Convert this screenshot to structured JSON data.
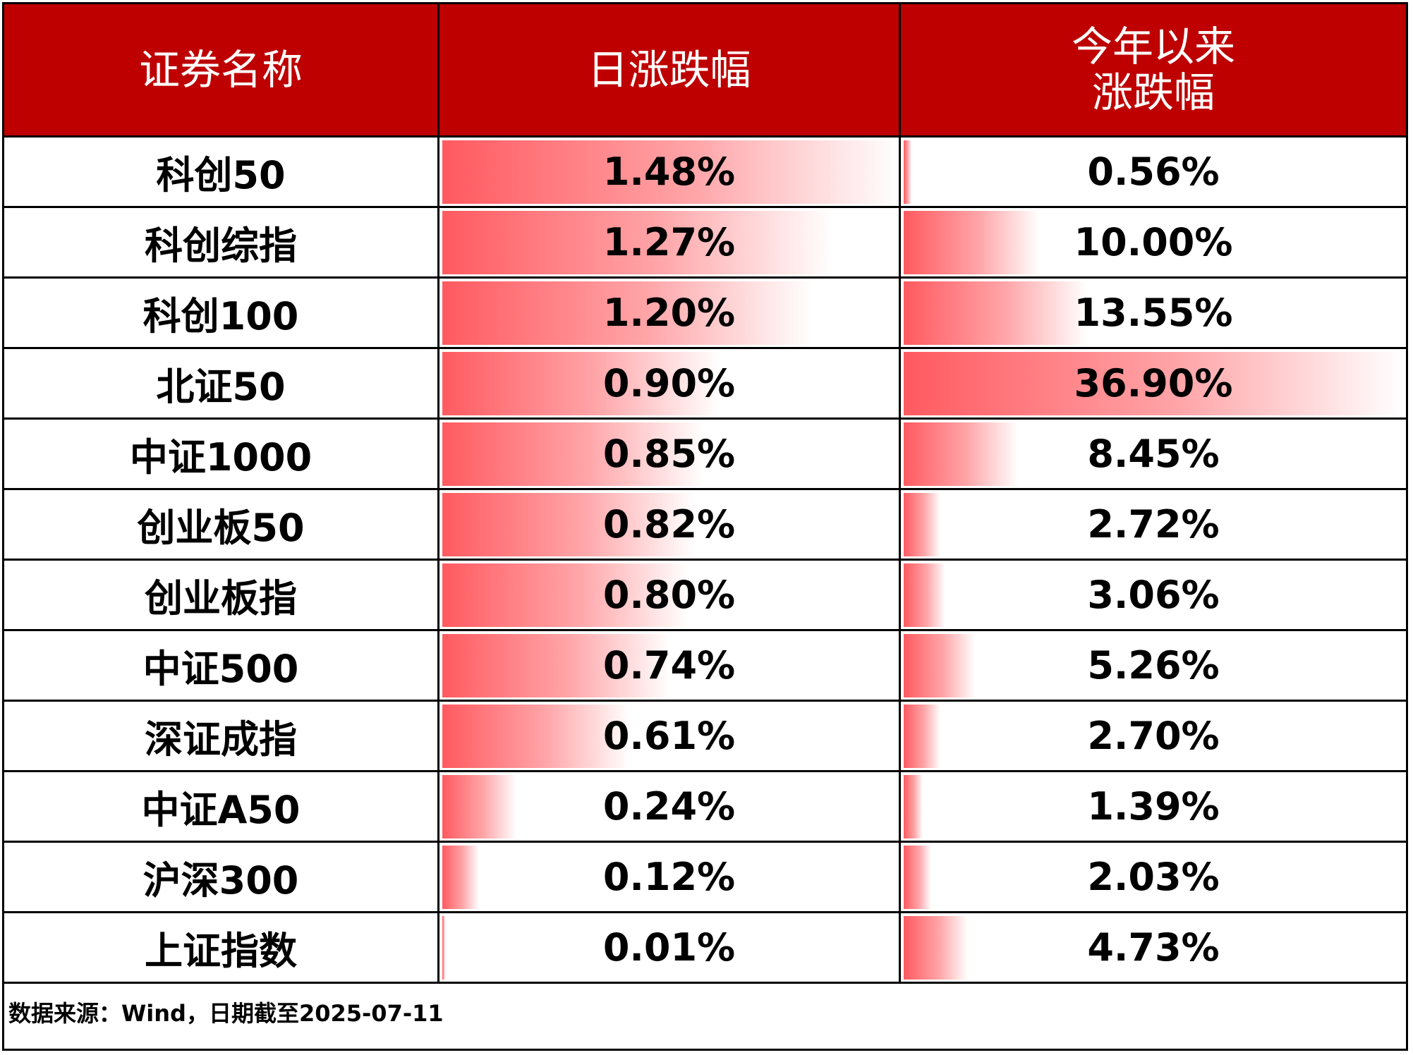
{
  "header": [
    "证券名称",
    "日涨跌幅",
    "今年以来\n涨跌幅"
  ],
  "table": {
    "rows": [
      {
        "name": "科创50",
        "daily": {
          "value": 1.48,
          "label": "1.48%"
        },
        "ytd": {
          "value": 0.56,
          "label": "0.56%"
        }
      },
      {
        "name": "科创综指",
        "daily": {
          "value": 1.27,
          "label": "1.27%"
        },
        "ytd": {
          "value": 10.0,
          "label": "10.00%"
        }
      },
      {
        "name": "科创100",
        "daily": {
          "value": 1.2,
          "label": "1.20%"
        },
        "ytd": {
          "value": 13.55,
          "label": "13.55%"
        }
      },
      {
        "name": "北证50",
        "daily": {
          "value": 0.9,
          "label": "0.90%"
        },
        "ytd": {
          "value": 36.9,
          "label": "36.90%"
        }
      },
      {
        "name": "中证1000",
        "daily": {
          "value": 0.85,
          "label": "0.85%"
        },
        "ytd": {
          "value": 8.45,
          "label": "8.45%"
        }
      },
      {
        "name": "创业板50",
        "daily": {
          "value": 0.82,
          "label": "0.82%"
        },
        "ytd": {
          "value": 2.72,
          "label": "2.72%"
        }
      },
      {
        "name": "创业板指",
        "daily": {
          "value": 0.8,
          "label": "0.80%"
        },
        "ytd": {
          "value": 3.06,
          "label": "3.06%"
        }
      },
      {
        "name": "中证500",
        "daily": {
          "value": 0.74,
          "label": "0.74%"
        },
        "ytd": {
          "value": 5.26,
          "label": "5.26%"
        }
      },
      {
        "name": "深证成指",
        "daily": {
          "value": 0.61,
          "label": "0.61%"
        },
        "ytd": {
          "value": 2.7,
          "label": "2.70%"
        }
      },
      {
        "name": "中证A50",
        "daily": {
          "value": 0.24,
          "label": "0.24%"
        },
        "ytd": {
          "value": 1.39,
          "label": "1.39%"
        }
      },
      {
        "name": "沪深300",
        "daily": {
          "value": 0.12,
          "label": "0.12%"
        },
        "ytd": {
          "value": 2.03,
          "label": "2.03%"
        }
      },
      {
        "name": "上证指数",
        "daily": {
          "value": 0.01,
          "label": "0.01%"
        },
        "ytd": {
          "value": 4.73,
          "label": "4.73%"
        }
      }
    ]
  },
  "footer": "数据来源：Wind，日期截至2025-07-11"
}
